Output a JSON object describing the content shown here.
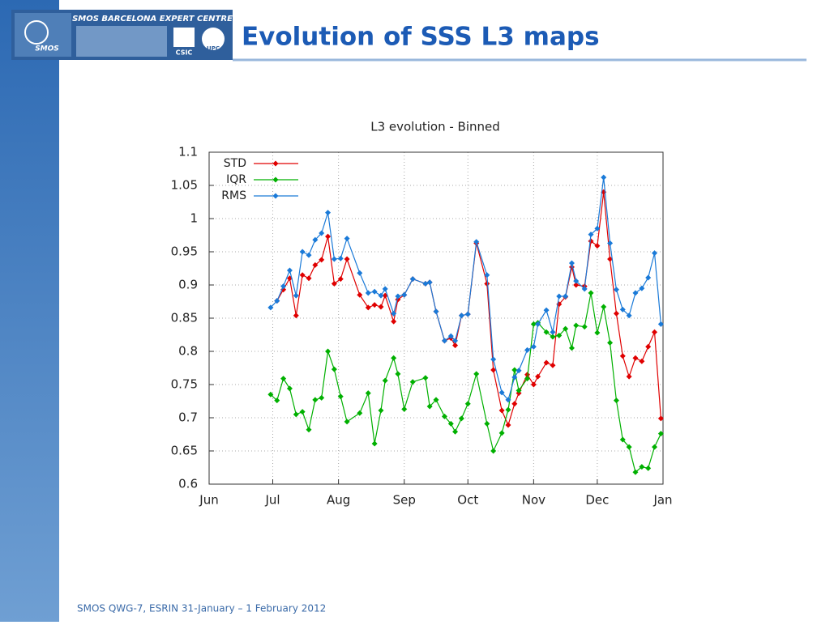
{
  "header": {
    "title": "Evolution of SSS L3 maps",
    "logo_title": "SMOS BARCELONA EXPERT CENTRE",
    "logo_smos": "SMOS",
    "logo_csic": "CSIC",
    "logo_upc": "UPC"
  },
  "footer": {
    "text": "SMOS QWG-7, ESRIN 31-January – 1 February 2012"
  },
  "chart_data": {
    "type": "line",
    "title": "L3 evolution - Binned",
    "x": [
      29,
      32,
      35,
      38,
      41,
      44,
      47,
      50,
      53,
      56,
      59,
      62,
      65,
      71,
      75,
      78,
      81,
      83,
      87,
      89,
      92,
      96,
      102,
      104,
      107,
      111,
      114,
      116,
      119,
      122,
      126,
      131,
      134,
      138,
      141,
      144,
      146,
      150,
      153,
      155,
      159,
      162,
      165,
      168,
      171,
      173,
      177,
      180,
      183,
      186,
      189,
      192,
      195,
      198,
      201,
      204,
      207,
      210,
      213
    ],
    "xlim": [
      0,
      214
    ],
    "xticks": [
      {
        "value": 0,
        "label": "Jun"
      },
      {
        "value": 30,
        "label": "Jul"
      },
      {
        "value": 61,
        "label": "Aug"
      },
      {
        "value": 92,
        "label": "Sep"
      },
      {
        "value": 122,
        "label": "Oct"
      },
      {
        "value": 153,
        "label": "Nov"
      },
      {
        "value": 183,
        "label": "Dec"
      },
      {
        "value": 214,
        "label": "Jan"
      }
    ],
    "ylim": [
      0.6,
      1.1
    ],
    "yticks": [
      0.6,
      0.65,
      0.7,
      0.75,
      0.8,
      0.85,
      0.9,
      0.95,
      1,
      1.05,
      1.1
    ],
    "grid": true,
    "legend": "top-left",
    "series": [
      {
        "name": "STD",
        "color": "#e00000",
        "values": [
          null,
          0.876,
          0.893,
          0.91,
          0.854,
          0.915,
          0.91,
          0.93,
          0.938,
          0.973,
          0.902,
          0.909,
          0.939,
          0.885,
          0.866,
          0.87,
          0.867,
          0.884,
          0.845,
          0.878,
          0.885,
          0.909,
          0.902,
          0.904,
          0.86,
          0.816,
          0.82,
          0.809,
          0.854,
          0.856,
          0.963,
          0.902,
          0.772,
          0.711,
          0.689,
          0.721,
          0.737,
          0.765,
          0.75,
          0.762,
          0.783,
          0.779,
          0.871,
          0.882,
          0.927,
          0.9,
          0.898,
          0.966,
          0.959,
          1.04,
          0.939,
          0.857,
          0.793,
          0.762,
          0.79,
          0.785,
          0.807,
          0.829,
          0.699
        ]
      },
      {
        "name": "IQR",
        "color": "#00b000",
        "values": [
          0.735,
          0.726,
          0.759,
          0.744,
          0.705,
          0.709,
          0.682,
          0.727,
          0.73,
          0.8,
          0.773,
          0.732,
          0.694,
          0.707,
          0.737,
          0.661,
          0.711,
          0.756,
          0.79,
          0.766,
          0.713,
          0.754,
          0.76,
          0.717,
          0.727,
          0.702,
          0.691,
          0.679,
          0.699,
          0.721,
          0.766,
          0.691,
          0.65,
          0.677,
          0.712,
          0.772,
          0.741,
          0.759,
          0.841,
          0.843,
          0.829,
          0.822,
          0.824,
          0.834,
          0.805,
          0.839,
          0.837,
          0.888,
          0.828,
          0.867,
          0.813,
          0.726,
          0.667,
          0.656,
          0.618,
          0.626,
          0.624,
          0.656,
          0.676
        ]
      },
      {
        "name": "RMS",
        "color": "#1a7ad8",
        "values": [
          0.866,
          0.876,
          0.898,
          0.922,
          0.884,
          0.95,
          0.945,
          0.968,
          0.978,
          1.009,
          0.939,
          0.94,
          0.97,
          0.918,
          0.888,
          0.89,
          0.884,
          0.894,
          0.857,
          0.883,
          0.885,
          0.909,
          0.902,
          0.904,
          0.86,
          0.816,
          0.823,
          0.816,
          0.854,
          0.856,
          0.965,
          0.915,
          0.788,
          0.738,
          0.727,
          0.761,
          0.771,
          0.802,
          0.807,
          0.841,
          0.862,
          0.829,
          0.883,
          0.883,
          0.933,
          0.906,
          0.894,
          0.976,
          0.985,
          1.062,
          0.963,
          0.893,
          0.863,
          0.854,
          0.888,
          0.895,
          0.911,
          0.948,
          0.841
        ]
      }
    ]
  }
}
